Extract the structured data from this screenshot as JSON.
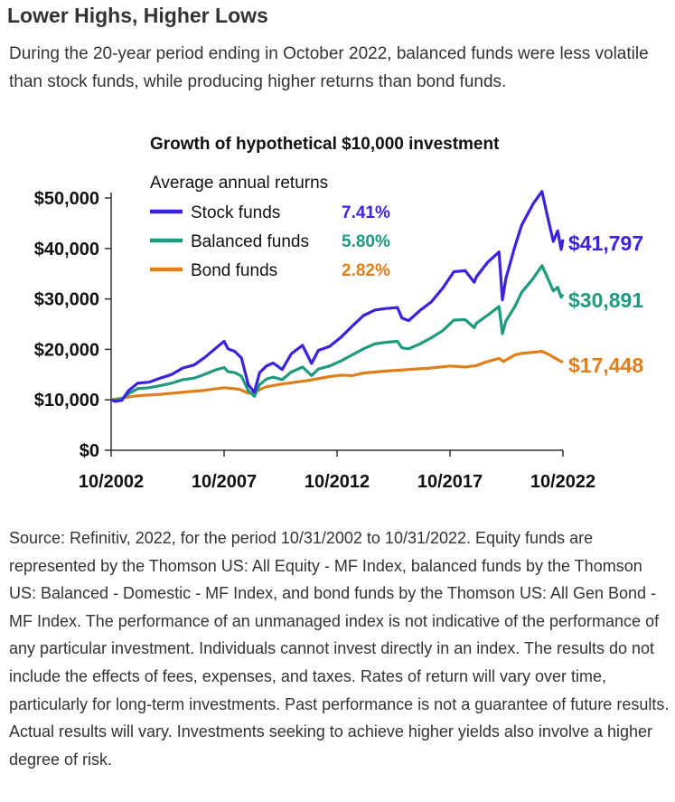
{
  "header": {
    "title": "Lower Highs, Higher Lows",
    "subtitle": "During the 20-year period ending in October 2022, balanced funds were less volatile than stock funds, while producing higher returns than bond funds."
  },
  "source_text": "Source: Refinitiv, 2022, for the period 10/31/2002 to 10/31/2022. Equity funds are represented by the Thomson US: All Equity - MF Index, balanced funds by the Thomson US: Balanced - Domestic - MF Index, and bond funds by the Thomson US: All Gen Bond - MF Index. The performance of an unmanaged index is not indicative of the performance of any particular investment. Individuals cannot invest directly in an index. The results do not include the effects of fees, expenses, and taxes. Rates of return will vary over time, particularly for long-term investments. Past performance is not a guarantee of future results. Actual results will vary. Investments seeking to achieve higher yields also involve a higher degree of risk.",
  "chart_data": {
    "type": "line",
    "title": "Growth of hypothetical $10,000 investment",
    "legend_title": "Average annual returns",
    "legend_position": "top-left",
    "grid": false,
    "xlim": [
      2002.83,
      2022.83
    ],
    "ylim": [
      0,
      50000
    ],
    "x_ticks": [
      2002.83,
      2007.83,
      2012.83,
      2017.83,
      2022.83
    ],
    "x_tick_labels": [
      "10/2002",
      "10/2007",
      "10/2012",
      "10/2017",
      "10/2022"
    ],
    "y_ticks": [
      0,
      10000,
      20000,
      30000,
      40000,
      50000
    ],
    "y_tick_labels": [
      "$0",
      "$10,000",
      "$20,000",
      "$30,000",
      "$40,000",
      "$50,000"
    ],
    "series": [
      {
        "name": "Stock funds",
        "return": "7.41%",
        "end_label": "$41,797",
        "color": "#3b22e0",
        "points": [
          [
            2002.83,
            10000
          ],
          [
            2003.0,
            9700
          ],
          [
            2003.3,
            9900
          ],
          [
            2003.6,
            11800
          ],
          [
            2004.0,
            13300
          ],
          [
            2004.5,
            13500
          ],
          [
            2005.0,
            14300
          ],
          [
            2005.5,
            15000
          ],
          [
            2006.0,
            16300
          ],
          [
            2006.5,
            16900
          ],
          [
            2007.0,
            18500
          ],
          [
            2007.5,
            20400
          ],
          [
            2007.83,
            21600
          ],
          [
            2008.0,
            20100
          ],
          [
            2008.3,
            19600
          ],
          [
            2008.6,
            18300
          ],
          [
            2008.9,
            13000
          ],
          [
            2009.17,
            11500
          ],
          [
            2009.4,
            15400
          ],
          [
            2009.7,
            16700
          ],
          [
            2010.0,
            17300
          ],
          [
            2010.4,
            16000
          ],
          [
            2010.8,
            19100
          ],
          [
            2011.3,
            20800
          ],
          [
            2011.7,
            17200
          ],
          [
            2012.0,
            19800
          ],
          [
            2012.5,
            20600
          ],
          [
            2013.0,
            22400
          ],
          [
            2013.5,
            24600
          ],
          [
            2014.0,
            26700
          ],
          [
            2014.5,
            27800
          ],
          [
            2015.0,
            28100
          ],
          [
            2015.5,
            28300
          ],
          [
            2015.7,
            26200
          ],
          [
            2016.0,
            25700
          ],
          [
            2016.5,
            27700
          ],
          [
            2017.0,
            29400
          ],
          [
            2017.5,
            32100
          ],
          [
            2018.0,
            35400
          ],
          [
            2018.5,
            35600
          ],
          [
            2018.9,
            33300
          ],
          [
            2019.0,
            34400
          ],
          [
            2019.5,
            37300
          ],
          [
            2020.0,
            39300
          ],
          [
            2020.15,
            29800
          ],
          [
            2020.3,
            34000
          ],
          [
            2020.7,
            40400
          ],
          [
            2021.0,
            44600
          ],
          [
            2021.5,
            48800
          ],
          [
            2021.9,
            51300
          ],
          [
            2022.1,
            47300
          ],
          [
            2022.4,
            41400
          ],
          [
            2022.6,
            43500
          ],
          [
            2022.75,
            39800
          ],
          [
            2022.83,
            41797
          ]
        ]
      },
      {
        "name": "Balanced funds",
        "return": "5.80%",
        "end_label": "$30,891",
        "color": "#1f9a7e",
        "points": [
          [
            2002.83,
            10000
          ],
          [
            2003.0,
            9900
          ],
          [
            2003.3,
            10200
          ],
          [
            2003.6,
            11200
          ],
          [
            2004.0,
            12200
          ],
          [
            2004.5,
            12400
          ],
          [
            2005.0,
            12800
          ],
          [
            2005.5,
            13300
          ],
          [
            2006.0,
            14000
          ],
          [
            2006.5,
            14300
          ],
          [
            2007.0,
            15100
          ],
          [
            2007.5,
            16000
          ],
          [
            2007.83,
            16400
          ],
          [
            2008.0,
            15600
          ],
          [
            2008.3,
            15400
          ],
          [
            2008.6,
            14700
          ],
          [
            2008.9,
            11800
          ],
          [
            2009.17,
            10700
          ],
          [
            2009.4,
            13000
          ],
          [
            2009.7,
            14100
          ],
          [
            2010.0,
            14500
          ],
          [
            2010.4,
            14000
          ],
          [
            2010.8,
            15500
          ],
          [
            2011.3,
            16500
          ],
          [
            2011.7,
            14800
          ],
          [
            2012.0,
            16100
          ],
          [
            2012.5,
            16700
          ],
          [
            2013.0,
            17700
          ],
          [
            2013.5,
            18900
          ],
          [
            2014.0,
            20100
          ],
          [
            2014.5,
            21100
          ],
          [
            2015.0,
            21400
          ],
          [
            2015.5,
            21600
          ],
          [
            2015.7,
            20300
          ],
          [
            2016.0,
            20100
          ],
          [
            2016.5,
            21100
          ],
          [
            2017.0,
            22300
          ],
          [
            2017.5,
            23700
          ],
          [
            2018.0,
            25800
          ],
          [
            2018.5,
            25900
          ],
          [
            2018.9,
            24300
          ],
          [
            2019.0,
            25200
          ],
          [
            2019.5,
            26800
          ],
          [
            2020.0,
            28500
          ],
          [
            2020.15,
            23100
          ],
          [
            2020.3,
            25600
          ],
          [
            2020.7,
            28500
          ],
          [
            2021.0,
            31300
          ],
          [
            2021.5,
            34000
          ],
          [
            2021.9,
            36600
          ],
          [
            2022.1,
            34700
          ],
          [
            2022.4,
            31600
          ],
          [
            2022.6,
            32300
          ],
          [
            2022.75,
            30300
          ],
          [
            2022.83,
            30891
          ]
        ]
      },
      {
        "name": "Bond funds",
        "return": "2.82%",
        "end_label": "$17,448",
        "color": "#e07f1a",
        "points": [
          [
            2002.83,
            10000
          ],
          [
            2003.5,
            10500
          ],
          [
            2004.0,
            10800
          ],
          [
            2005.0,
            11100
          ],
          [
            2006.0,
            11500
          ],
          [
            2007.0,
            11900
          ],
          [
            2007.83,
            12400
          ],
          [
            2008.5,
            12100
          ],
          [
            2008.9,
            11300
          ],
          [
            2009.2,
            11600
          ],
          [
            2009.7,
            12600
          ],
          [
            2010.5,
            13200
          ],
          [
            2011.5,
            13800
          ],
          [
            2012.5,
            14600
          ],
          [
            2013.0,
            14900
          ],
          [
            2013.5,
            14800
          ],
          [
            2014.0,
            15300
          ],
          [
            2015.0,
            15700
          ],
          [
            2016.0,
            16000
          ],
          [
            2017.0,
            16300
          ],
          [
            2017.83,
            16700
          ],
          [
            2018.5,
            16500
          ],
          [
            2019.0,
            16800
          ],
          [
            2019.5,
            17600
          ],
          [
            2020.0,
            18200
          ],
          [
            2020.2,
            17600
          ],
          [
            2020.7,
            18900
          ],
          [
            2021.0,
            19200
          ],
          [
            2021.5,
            19400
          ],
          [
            2021.9,
            19600
          ],
          [
            2022.2,
            19000
          ],
          [
            2022.5,
            18200
          ],
          [
            2022.7,
            17700
          ],
          [
            2022.83,
            17448
          ]
        ]
      }
    ]
  }
}
